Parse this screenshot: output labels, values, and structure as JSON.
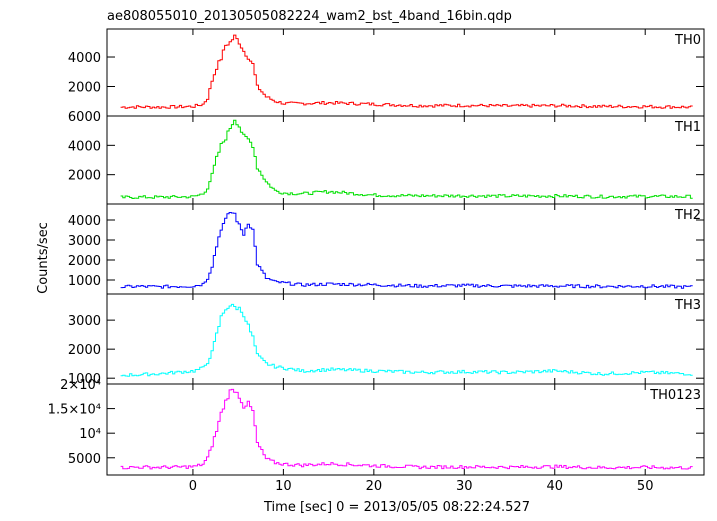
{
  "title": "ae808055010_20130505082224_wam2_bst_4band_16bin.qdp",
  "ylabel": "Counts/sec",
  "xlabel": "Time [sec] 0 = 2013/05/05 08:22:24.527",
  "chart_data": {
    "type": "line",
    "title": "ae808055010_20130505082224_wam2_bst_4band_16bin.qdp",
    "xlabel": "Time [sec] 0 = 2013/05/05 08:22:24.527",
    "ylabel": "Counts/sec",
    "xlim": [
      -9.5,
      56.5
    ],
    "xticks": [
      0,
      10,
      20,
      30,
      40,
      50
    ],
    "grid": false,
    "panels": [
      {
        "name": "TH0",
        "color": "#ff0000",
        "ylim": [
          0,
          5900
        ],
        "yticks": [
          2000,
          4000
        ],
        "yticklabels": [
          "2000",
          "4000"
        ],
        "x": [
          -8,
          -6,
          -4,
          -2,
          0,
          1,
          1.5,
          2,
          2.5,
          3,
          3.5,
          4,
          4.5,
          5,
          5.5,
          6,
          6.5,
          7,
          8,
          9,
          10,
          12,
          15,
          20,
          25,
          30,
          35,
          40,
          45,
          50,
          55
        ],
        "y": [
          600,
          620,
          600,
          620,
          650,
          800,
          1200,
          2400,
          3300,
          3900,
          4800,
          5000,
          5400,
          5000,
          4400,
          4000,
          3500,
          2000,
          1300,
          1000,
          850,
          850,
          900,
          800,
          700,
          720,
          680,
          700,
          650,
          640,
          600
        ]
      },
      {
        "name": "TH1",
        "color": "#00e000",
        "ylim": [
          0,
          6000
        ],
        "yticks": [
          2000,
          4000,
          6000
        ],
        "yticklabels": [
          "2000",
          "4000",
          "6000"
        ],
        "x": [
          -8,
          -6,
          -4,
          -2,
          0,
          1,
          1.5,
          2,
          2.5,
          3,
          3.5,
          4,
          4.5,
          5,
          5.5,
          6,
          6.5,
          7,
          8,
          9,
          10,
          12,
          15,
          20,
          25,
          30,
          35,
          40,
          45,
          50,
          55
        ],
        "y": [
          450,
          470,
          460,
          480,
          500,
          700,
          1100,
          2000,
          3100,
          4000,
          4500,
          5200,
          5800,
          5300,
          4600,
          4400,
          4000,
          2500,
          1500,
          900,
          750,
          700,
          850,
          600,
          560,
          560,
          540,
          550,
          500,
          520,
          500
        ]
      },
      {
        "name": "TH2",
        "color": "#0000ff",
        "ylim": [
          300,
          4800
        ],
        "yticks": [
          1000,
          2000,
          3000,
          4000
        ],
        "yticklabels": [
          "1000",
          "2000",
          "3000",
          "4000"
        ],
        "x": [
          -8,
          -6,
          -4,
          -2,
          0,
          1,
          1.5,
          2,
          2.5,
          3,
          3.5,
          4,
          4.5,
          5,
          5.5,
          6,
          6.5,
          7,
          8,
          9,
          10,
          12,
          15,
          20,
          25,
          30,
          35,
          40,
          45,
          50,
          55
        ],
        "y": [
          650,
          680,
          660,
          680,
          700,
          800,
          1100,
          1700,
          2700,
          3600,
          4000,
          4400,
          4300,
          3700,
          3300,
          3900,
          3500,
          1800,
          1100,
          900,
          850,
          750,
          800,
          760,
          700,
          720,
          700,
          700,
          680,
          690,
          650
        ]
      },
      {
        "name": "TH3",
        "color": "#00ffff",
        "ylim": [
          800,
          3900
        ],
        "yticks": [
          1000,
          2000,
          3000
        ],
        "yticklabels": [
          "1000",
          "2000",
          "3000"
        ],
        "x": [
          -8,
          -6,
          -4,
          -2,
          0,
          1,
          1.5,
          2,
          2.5,
          3,
          3.5,
          4,
          4.5,
          5,
          5.5,
          6,
          6.5,
          7,
          8,
          9,
          10,
          12,
          15,
          20,
          25,
          30,
          35,
          40,
          45,
          50,
          55
        ],
        "y": [
          1100,
          1120,
          1150,
          1200,
          1250,
          1350,
          1550,
          1900,
          2500,
          3100,
          3400,
          3500,
          3450,
          3400,
          3200,
          2800,
          2400,
          1800,
          1500,
          1400,
          1350,
          1250,
          1300,
          1250,
          1200,
          1220,
          1200,
          1250,
          1150,
          1200,
          1150
        ]
      },
      {
        "name": "TH0123",
        "color": "#ff00ff",
        "ylim": [
          1500,
          20000
        ],
        "yticks": [
          5000,
          10000,
          15000,
          20000
        ],
        "yticklabels": [
          "5000",
          "10⁴",
          "1.5×10⁴",
          "2×10⁴"
        ],
        "x": [
          -8,
          -6,
          -4,
          -2,
          0,
          1,
          1.5,
          2,
          2.5,
          3,
          3.5,
          4,
          4.5,
          5,
          5.5,
          6,
          6.5,
          7,
          8,
          9,
          10,
          12,
          15,
          20,
          25,
          30,
          35,
          40,
          45,
          50,
          55
        ],
        "y": [
          3000,
          3100,
          3050,
          3100,
          3200,
          3700,
          5000,
          7500,
          10500,
          14000,
          16500,
          18500,
          18800,
          17500,
          15500,
          16000,
          14500,
          8000,
          4800,
          4000,
          3700,
          3500,
          3800,
          3400,
          3100,
          3150,
          3100,
          3200,
          3000,
          3050,
          2950
        ]
      }
    ]
  }
}
